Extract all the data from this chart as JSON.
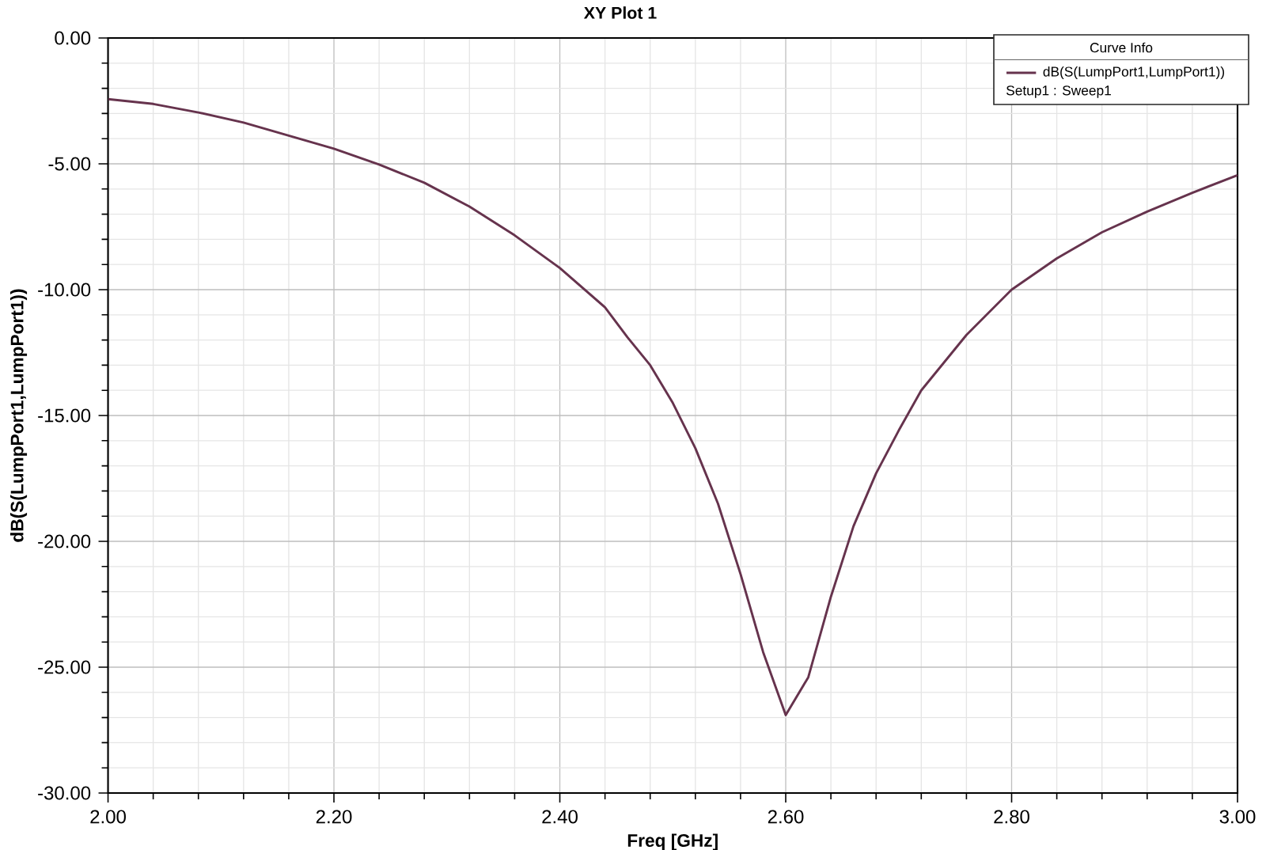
{
  "chart_data": {
    "type": "line",
    "title": "XY Plot 1",
    "xlabel": "Freq [GHz]",
    "ylabel": "dB(S(LumpPort1,LumpPort1))",
    "legend_title": "Curve Info",
    "annotations": [
      "Setup1 : Sweep1"
    ],
    "x": [
      2.0,
      2.04,
      2.08,
      2.12,
      2.16,
      2.2,
      2.24,
      2.28,
      2.32,
      2.36,
      2.4,
      2.44,
      2.46,
      2.48,
      2.5,
      2.52,
      2.54,
      2.56,
      2.58,
      2.6,
      2.62,
      2.64,
      2.66,
      2.68,
      2.7,
      2.72,
      2.74,
      2.76,
      2.8,
      2.84,
      2.88,
      2.92,
      2.96,
      3.0
    ],
    "series": [
      {
        "name": "dB(S(LumpPort1,LumpPort1))",
        "color": "#66334d",
        "values": [
          -2.43,
          -2.62,
          -2.96,
          -3.36,
          -3.88,
          -4.4,
          -5.03,
          -5.75,
          -6.7,
          -7.84,
          -9.14,
          -10.7,
          -11.9,
          -13.0,
          -14.5,
          -16.3,
          -18.5,
          -21.3,
          -24.4,
          -26.9,
          -25.4,
          -22.2,
          -19.4,
          -17.3,
          -15.6,
          -14.0,
          -12.9,
          -11.8,
          -10.0,
          -8.76,
          -7.72,
          -6.9,
          -6.15,
          -5.45
        ]
      }
    ],
    "xlim": [
      2,
      3
    ],
    "ylim": [
      -30,
      0
    ],
    "xticks": [
      {
        "value": 2,
        "label": "2.00"
      },
      {
        "value": 2.2,
        "label": "2.20"
      },
      {
        "value": 2.4,
        "label": "2.40"
      },
      {
        "value": 2.6,
        "label": "2.60"
      },
      {
        "value": 2.8,
        "label": "2.80"
      },
      {
        "value": 3,
        "label": "3.00"
      }
    ],
    "yticks": [
      {
        "value": -30,
        "label": "-30.00"
      },
      {
        "value": -25,
        "label": "-25.00"
      },
      {
        "value": -20,
        "label": "-20.00"
      },
      {
        "value": -15,
        "label": "-15.00"
      },
      {
        "value": -10,
        "label": "-10.00"
      },
      {
        "value": -5,
        "label": "-5.00"
      },
      {
        "value": 0,
        "label": "0.00"
      }
    ],
    "grid": true,
    "legend": "top right"
  }
}
